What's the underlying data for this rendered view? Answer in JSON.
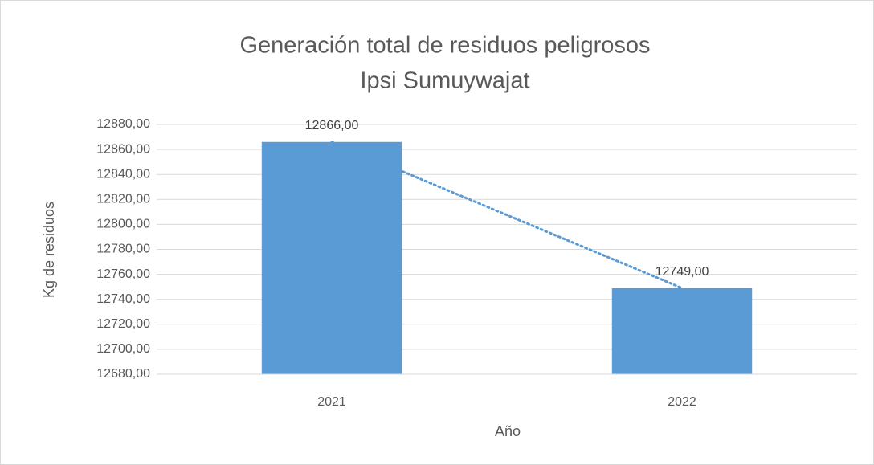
{
  "chart_data": {
    "type": "bar",
    "title": [
      "Generación total de residuos peligrosos",
      "Ipsi Sumuywajat"
    ],
    "x_label": "Año",
    "y_label": "Kg de residuos",
    "categories": [
      "2021",
      "2022"
    ],
    "values": [
      12866,
      12749
    ],
    "value_labels": [
      "12866,00",
      "12749,00"
    ],
    "color": "#5b9bd5",
    "trendline": {
      "type": "linear",
      "color": "#5b9bd5"
    },
    "ylim": [
      12680,
      12880
    ],
    "yticks": [
      {
        "value": 12680,
        "label": "12680,00"
      },
      {
        "value": 12700,
        "label": "12700,00"
      },
      {
        "value": 12720,
        "label": "12720,00"
      },
      {
        "value": 12740,
        "label": "12740,00"
      },
      {
        "value": 12760,
        "label": "12760,00"
      },
      {
        "value": 12780,
        "label": "12780,00"
      },
      {
        "value": 12800,
        "label": "12800,00"
      },
      {
        "value": 12820,
        "label": "12820,00"
      },
      {
        "value": 12840,
        "label": "12840,00"
      },
      {
        "value": 12860,
        "label": "12860,00"
      },
      {
        "value": 12880,
        "label": "12880,00"
      }
    ],
    "grid": true
  }
}
